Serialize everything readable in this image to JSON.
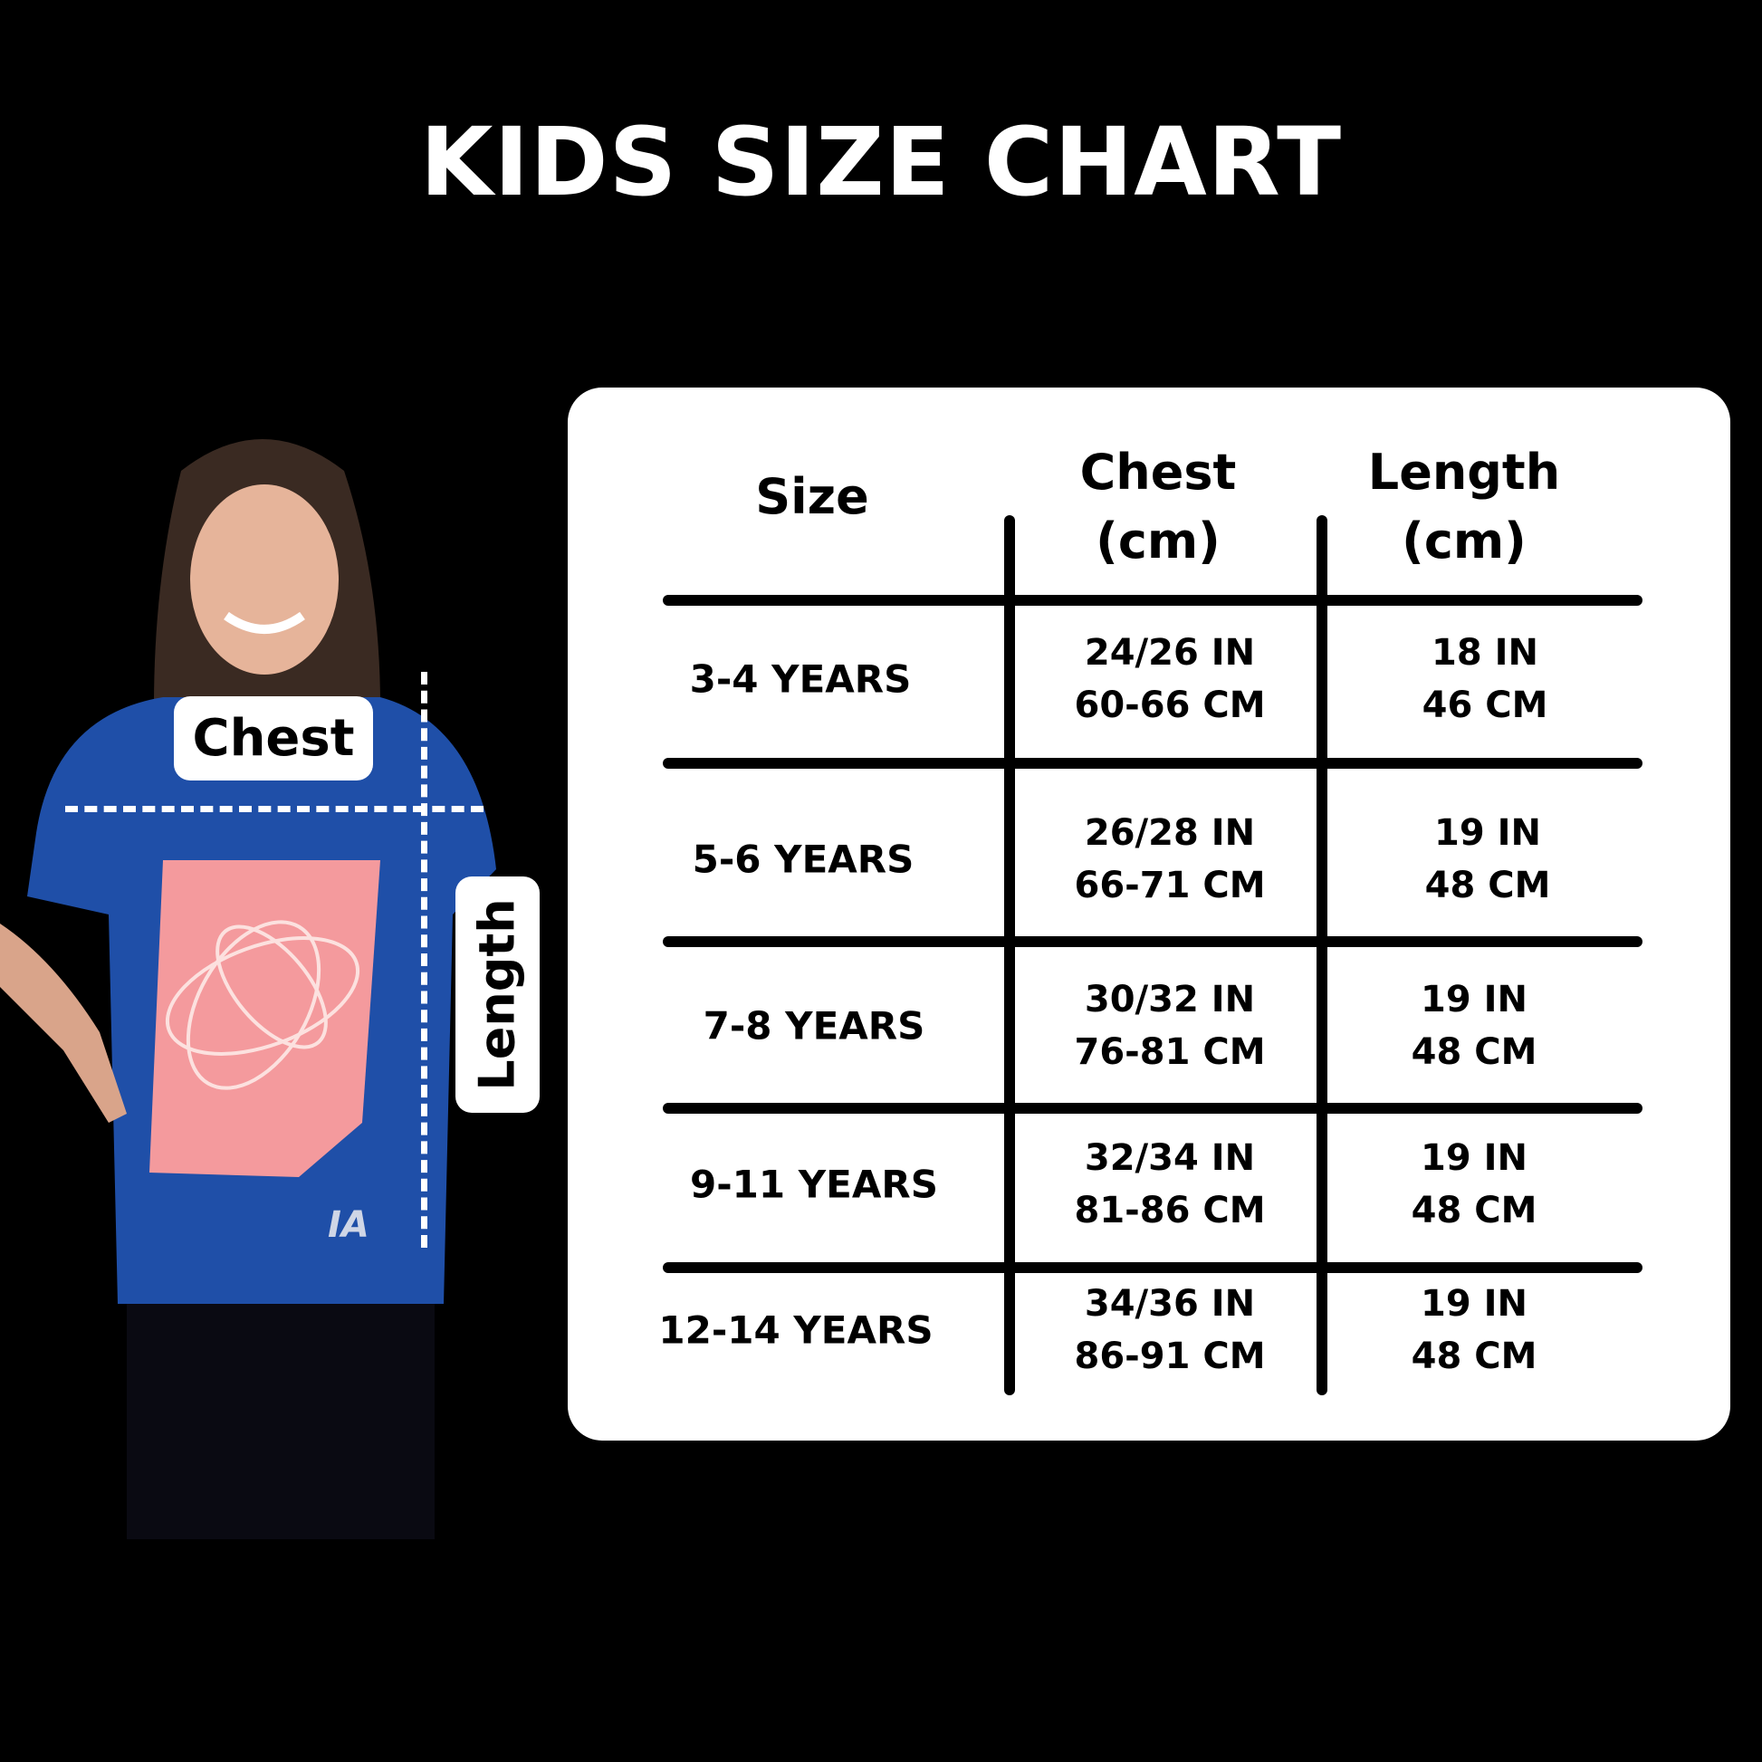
{
  "title": "KIDS SIZE CHART",
  "figure": {
    "chest_label": "Chest",
    "length_label": "Length",
    "shirt_logo": "IA"
  },
  "table": {
    "headers": {
      "size": "Size",
      "chest": [
        "Chest",
        "(cm)"
      ],
      "length": [
        "Length",
        "(cm)"
      ]
    },
    "rows": [
      {
        "size": "3-4 YEARS",
        "chest": [
          "24/26 IN",
          "60-66 CM"
        ],
        "length": [
          "18 IN",
          "46 CM"
        ]
      },
      {
        "size": "5-6 YEARS",
        "chest": [
          "26/28 IN",
          "66-71 CM"
        ],
        "length": [
          "19 IN",
          "48 CM"
        ]
      },
      {
        "size": "7-8 YEARS",
        "chest": [
          "30/32 IN",
          "76-81 CM"
        ],
        "length": [
          "19 IN",
          "48 CM"
        ]
      },
      {
        "size": "9-11 YEARS",
        "chest": [
          "32/34 IN",
          "81-86 CM"
        ],
        "length": [
          "19 IN",
          "48 CM"
        ]
      },
      {
        "size": "12-14 YEARS",
        "chest": [
          "34/36 IN",
          "86-91 CM"
        ],
        "length": [
          "19 IN",
          "48 CM"
        ]
      }
    ]
  }
}
